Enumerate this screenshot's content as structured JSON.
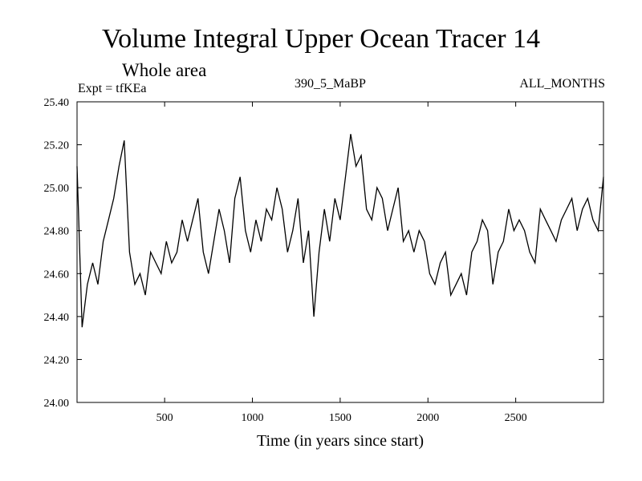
{
  "header": {
    "title": "Volume Integral Upper Ocean Tracer 14",
    "subtitle": "Whole area",
    "experiment": "Expt = tfKEa",
    "run_name": "390_5_MaBP",
    "months": "ALL_MONTHS"
  },
  "chart_data": {
    "type": "line",
    "title": "Volume Integral Upper Ocean Tracer 14",
    "subtitle": "Whole area",
    "xlabel": "Time (in years since start)",
    "ylabel": "",
    "xlim": [
      1,
      3000
    ],
    "ylim": [
      24.0,
      25.4
    ],
    "x_ticks": [
      500,
      1000,
      1500,
      2000,
      2500
    ],
    "x_tick_labels": [
      "500",
      "1000",
      "1500",
      "2000",
      "2500"
    ],
    "y_ticks": [
      24.0,
      24.2,
      24.4,
      24.6,
      24.8,
      25.0,
      25.2,
      25.4
    ],
    "y_tick_labels": [
      "24.00",
      "24.20",
      "24.40",
      "24.60",
      "24.80",
      "25.00",
      "25.20",
      "25.40"
    ],
    "grid": false,
    "legend": "none",
    "line_color": "#000000",
    "series": [
      {
        "x": [
          1,
          30,
          60,
          90,
          120,
          150,
          180,
          210,
          240,
          270,
          300,
          330,
          360,
          390,
          420,
          450,
          480,
          510,
          540,
          570,
          600,
          630,
          660,
          690,
          720,
          750,
          780,
          810,
          840,
          870,
          900,
          930,
          960,
          990,
          1020,
          1050,
          1080,
          1110,
          1140,
          1170,
          1200,
          1230,
          1260,
          1290,
          1320,
          1350,
          1380,
          1410,
          1440,
          1470,
          1500,
          1530,
          1560,
          1590,
          1620,
          1650,
          1680,
          1710,
          1740,
          1770,
          1800,
          1830,
          1860,
          1890,
          1920,
          1950,
          1980,
          2010,
          2040,
          2070,
          2100,
          2130,
          2160,
          2190,
          2220,
          2250,
          2280,
          2310,
          2340,
          2370,
          2400,
          2430,
          2460,
          2490,
          2520,
          2550,
          2580,
          2610,
          2640,
          2670,
          2700,
          2730,
          2760,
          2790,
          2820,
          2850,
          2880,
          2910,
          2940,
          2970,
          3000
        ],
        "values": [
          25.1,
          24.35,
          24.55,
          24.65,
          24.55,
          24.75,
          24.85,
          24.95,
          25.1,
          25.22,
          24.7,
          24.55,
          24.6,
          24.5,
          24.7,
          24.65,
          24.6,
          24.75,
          24.65,
          24.7,
          24.85,
          24.75,
          24.85,
          24.95,
          24.7,
          24.6,
          24.75,
          24.9,
          24.8,
          24.65,
          24.95,
          25.05,
          24.8,
          24.7,
          24.85,
          24.75,
          24.9,
          24.85,
          25.0,
          24.9,
          24.7,
          24.8,
          24.95,
          24.65,
          24.8,
          24.4,
          24.7,
          24.9,
          24.75,
          24.95,
          24.85,
          25.05,
          25.25,
          25.1,
          25.15,
          24.9,
          24.85,
          25.0,
          24.95,
          24.8,
          24.9,
          25.0,
          24.75,
          24.8,
          24.7,
          24.8,
          24.75,
          24.6,
          24.55,
          24.65,
          24.7,
          24.5,
          24.55,
          24.6,
          24.5,
          24.7,
          24.75,
          24.85,
          24.8,
          24.55,
          24.7,
          24.75,
          24.9,
          24.8,
          24.85,
          24.8,
          24.7,
          24.65,
          24.9,
          24.85,
          24.8,
          24.75,
          24.85,
          24.9,
          24.95,
          24.8,
          24.9,
          24.95,
          24.85,
          24.8,
          25.05
        ]
      }
    ]
  }
}
